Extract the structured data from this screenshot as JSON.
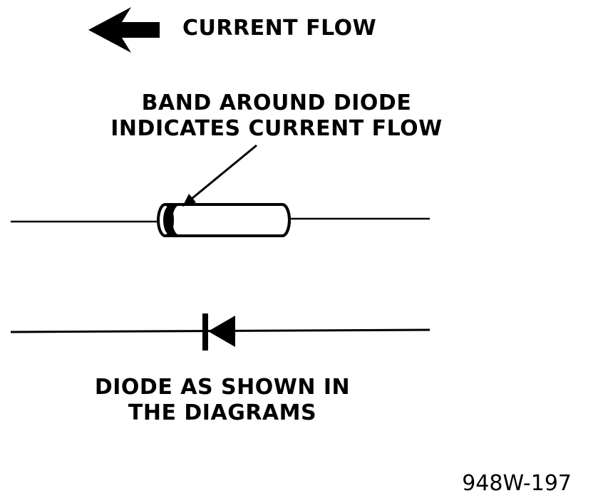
{
  "legend": {
    "arrow_icon": "left-arrow-icon",
    "label": "CURRENT FLOW"
  },
  "band_callout": {
    "line1": "BAND AROUND DIODE",
    "line2": "INDICATES CURRENT FLOW"
  },
  "schematic_caption": {
    "line1": "DIODE AS SHOWN IN",
    "line2": "THE DIAGRAMS"
  },
  "figure_id": "948W-197",
  "colors": {
    "ink": "#000000",
    "paper": "#ffffff"
  }
}
